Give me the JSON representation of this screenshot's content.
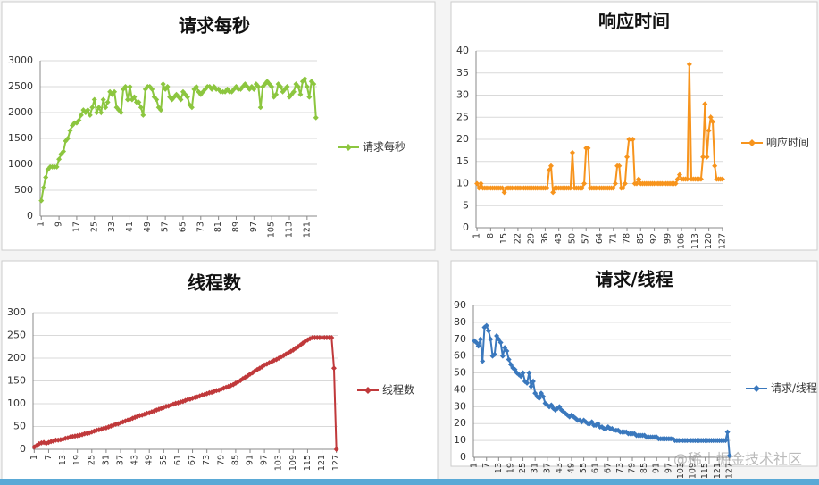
{
  "chart_data": [
    {
      "type": "line",
      "title": "请求每秒",
      "categories": [
        1,
        null,
        null,
        null,
        null,
        null,
        null,
        null,
        9,
        null,
        null,
        null,
        null,
        null,
        null,
        null,
        17,
        null,
        null,
        null,
        null,
        null,
        null,
        null,
        25,
        null,
        null,
        null,
        null,
        null,
        null,
        null,
        33,
        null,
        null,
        null,
        null,
        null,
        null,
        null,
        41,
        null,
        null,
        null,
        null,
        null,
        null,
        null,
        49,
        null,
        null,
        null,
        null,
        null,
        null,
        null,
        57,
        null,
        null,
        null,
        null,
        null,
        null,
        null,
        65,
        null,
        null,
        null,
        null,
        null,
        null,
        null,
        73,
        null,
        null,
        null,
        null,
        null,
        null,
        null,
        81,
        null,
        null,
        null,
        null,
        null,
        null,
        null,
        89,
        null,
        null,
        null,
        null,
        null,
        null,
        null,
        97,
        null,
        null,
        null,
        null,
        null,
        null,
        null,
        105,
        null,
        null,
        null,
        null,
        null,
        null,
        null,
        113,
        null,
        null,
        null,
        null,
        null,
        null,
        null,
        121,
        null,
        null,
        null,
        null
      ],
      "series": [
        {
          "name": "请求每秒",
          "color": "#8cc63f",
          "values": [
            300,
            550,
            750,
            900,
            950,
            950,
            950,
            950,
            1100,
            1200,
            1250,
            1450,
            1500,
            1650,
            1750,
            1800,
            1800,
            1850,
            1950,
            2050,
            2000,
            2050,
            1950,
            2100,
            2250,
            2000,
            2100,
            2000,
            2250,
            2100,
            2200,
            2400,
            2350,
            2400,
            2100,
            2050,
            2000,
            2450,
            2500,
            2250,
            2500,
            2250,
            2300,
            2200,
            2200,
            2100,
            1950,
            2450,
            2500,
            2500,
            2450,
            2300,
            2250,
            2100,
            2050,
            2550,
            2450,
            2500,
            2300,
            2250,
            2300,
            2350,
            2300,
            2250,
            2400,
            2350,
            2300,
            2150,
            2100,
            2450,
            2500,
            2400,
            2350,
            2400,
            2450,
            2500,
            2500,
            2450,
            2500,
            2450,
            2450,
            2400,
            2400,
            2400,
            2450,
            2400,
            2400,
            2450,
            2500,
            2450,
            2450,
            2500,
            2550,
            2500,
            2450,
            2500,
            2450,
            2550,
            2500,
            2100,
            2500,
            2550,
            2600,
            2550,
            2500,
            2300,
            2350,
            2550,
            2500,
            2400,
            2450,
            2500,
            2300,
            2350,
            2400,
            2550,
            2500,
            2350,
            2600,
            2650,
            2500,
            2300,
            2600,
            2550,
            1900
          ]
        }
      ],
      "ylim": [
        0,
        3000
      ],
      "yticks": [
        0,
        500,
        1000,
        1500,
        2000,
        2500,
        3000
      ],
      "grid": true
    },
    {
      "type": "line",
      "title": "响应时间",
      "categories": [
        1,
        null,
        null,
        null,
        null,
        null,
        null,
        8,
        null,
        null,
        null,
        null,
        null,
        null,
        15,
        null,
        null,
        null,
        null,
        null,
        null,
        22,
        null,
        null,
        null,
        null,
        null,
        null,
        29,
        null,
        null,
        null,
        null,
        null,
        null,
        36,
        null,
        null,
        null,
        null,
        null,
        null,
        43,
        null,
        null,
        null,
        null,
        null,
        null,
        50,
        null,
        null,
        null,
        null,
        null,
        null,
        57,
        null,
        null,
        null,
        null,
        null,
        null,
        64,
        null,
        null,
        null,
        null,
        null,
        null,
        71,
        null,
        null,
        null,
        null,
        null,
        null,
        78,
        null,
        null,
        null,
        null,
        null,
        null,
        85,
        null,
        null,
        null,
        null,
        null,
        null,
        92,
        null,
        null,
        null,
        null,
        null,
        null,
        99,
        null,
        null,
        null,
        null,
        null,
        null,
        106,
        null,
        null,
        null,
        null,
        null,
        null,
        113,
        null,
        null,
        null,
        null,
        null,
        null,
        120,
        null,
        null,
        null,
        null,
        null,
        null,
        127
      ],
      "series": [
        {
          "name": "响应时间",
          "color": "#f7941d",
          "values": [
            10,
            9,
            10,
            9,
            9,
            9,
            9,
            9,
            9,
            9,
            9,
            9,
            9,
            9,
            8,
            9,
            9,
            9,
            9,
            9,
            9,
            9,
            9,
            9,
            9,
            9,
            9,
            9,
            9,
            9,
            9,
            9,
            9,
            9,
            9,
            9,
            9,
            13,
            14,
            8,
            9,
            9,
            9,
            9,
            9,
            9,
            9,
            9,
            9,
            17,
            9,
            9,
            9,
            9,
            9,
            10,
            18,
            18,
            9,
            9,
            9,
            9,
            9,
            9,
            9,
            9,
            9,
            9,
            9,
            9,
            9,
            10,
            14,
            14,
            9,
            9,
            10,
            16,
            20,
            20,
            20,
            10,
            10,
            11,
            10,
            10,
            10,
            10,
            10,
            10,
            10,
            10,
            10,
            10,
            10,
            10,
            10,
            10,
            10,
            10,
            10,
            10,
            10,
            11,
            12,
            11,
            11,
            11,
            11,
            37,
            11,
            11,
            11,
            11,
            11,
            11,
            16,
            28,
            16,
            22,
            25,
            24,
            14,
            11,
            11,
            11,
            11
          ]
        }
      ],
      "ylim": [
        0,
        40
      ],
      "yticks": [
        0,
        5,
        10,
        15,
        20,
        25,
        30,
        35,
        40
      ],
      "grid": true
    },
    {
      "type": "line",
      "title": "线程数",
      "categories": [
        1,
        null,
        null,
        null,
        null,
        null,
        7,
        null,
        null,
        null,
        null,
        null,
        13,
        null,
        null,
        null,
        null,
        null,
        19,
        null,
        null,
        null,
        null,
        null,
        25,
        null,
        null,
        null,
        null,
        null,
        31,
        null,
        null,
        null,
        null,
        null,
        37,
        null,
        null,
        null,
        null,
        null,
        43,
        null,
        null,
        null,
        null,
        null,
        49,
        null,
        null,
        null,
        null,
        null,
        55,
        null,
        null,
        null,
        null,
        null,
        61,
        null,
        null,
        null,
        null,
        null,
        67,
        null,
        null,
        null,
        null,
        null,
        73,
        null,
        null,
        null,
        null,
        null,
        79,
        null,
        null,
        null,
        null,
        null,
        85,
        null,
        null,
        null,
        null,
        null,
        91,
        null,
        null,
        null,
        null,
        null,
        97,
        null,
        null,
        null,
        null,
        null,
        103,
        null,
        null,
        null,
        null,
        null,
        109,
        null,
        null,
        null,
        null,
        null,
        115,
        null,
        null,
        null,
        null,
        null,
        121,
        null,
        null,
        null,
        null,
        null,
        127
      ],
      "series": [
        {
          "name": "线程数",
          "color": "#c0393b",
          "values": [
            5,
            8,
            12,
            14,
            15,
            13,
            15,
            17,
            18,
            20,
            20,
            21,
            22,
            24,
            25,
            27,
            28,
            29,
            30,
            31,
            32,
            34,
            35,
            36,
            38,
            40,
            42,
            43,
            44,
            46,
            47,
            49,
            51,
            53,
            55,
            56,
            58,
            60,
            62,
            64,
            66,
            68,
            70,
            72,
            74,
            75,
            77,
            79,
            80,
            82,
            84,
            86,
            88,
            90,
            92,
            94,
            95,
            97,
            99,
            101,
            102,
            104,
            105,
            107,
            109,
            110,
            112,
            114,
            115,
            117,
            119,
            120,
            122,
            124,
            125,
            127,
            129,
            130,
            132,
            134,
            136,
            138,
            140,
            142,
            145,
            148,
            151,
            155,
            158,
            161,
            165,
            168,
            172,
            175,
            178,
            181,
            185,
            187,
            190,
            192,
            195,
            197,
            200,
            203,
            206,
            209,
            212,
            215,
            218,
            222,
            225,
            229,
            233,
            237,
            240,
            243,
            245,
            245,
            245,
            245,
            245,
            245,
            245,
            245,
            245,
            178,
            0
          ]
        }
      ],
      "ylim": [
        0,
        300
      ],
      "yticks": [
        0,
        50,
        100,
        150,
        200,
        250,
        300
      ],
      "grid": true
    },
    {
      "type": "line",
      "title": "请求/线程",
      "categories": [
        1,
        null,
        null,
        null,
        null,
        null,
        7,
        null,
        null,
        null,
        null,
        null,
        13,
        null,
        null,
        null,
        null,
        null,
        19,
        null,
        null,
        null,
        null,
        null,
        25,
        null,
        null,
        null,
        null,
        null,
        31,
        null,
        null,
        null,
        null,
        null,
        37,
        null,
        null,
        null,
        null,
        null,
        43,
        null,
        null,
        null,
        null,
        null,
        49,
        null,
        null,
        null,
        null,
        null,
        55,
        null,
        null,
        null,
        null,
        null,
        61,
        null,
        null,
        null,
        null,
        null,
        67,
        null,
        null,
        null,
        null,
        null,
        73,
        null,
        null,
        null,
        null,
        null,
        79,
        null,
        null,
        null,
        null,
        null,
        85,
        null,
        null,
        null,
        null,
        null,
        91,
        null,
        null,
        null,
        null,
        null,
        97,
        null,
        null,
        null,
        null,
        null,
        103,
        null,
        null,
        null,
        null,
        null,
        109,
        null,
        null,
        null,
        null,
        null,
        115,
        null,
        null,
        null,
        null,
        null,
        121,
        null,
        null,
        null,
        null,
        null,
        127
      ],
      "series": [
        {
          "name": "请求/线程",
          "color": "#3a78bd",
          "values": [
            69,
            68,
            66,
            70,
            57,
            77,
            78,
            75,
            70,
            60,
            61,
            72,
            70,
            68,
            60,
            65,
            63,
            58,
            55,
            53,
            52,
            50,
            49,
            48,
            50,
            45,
            44,
            50,
            42,
            45,
            38,
            36,
            35,
            38,
            36,
            32,
            31,
            30,
            31,
            29,
            28,
            29,
            30,
            28,
            27,
            26,
            25,
            24,
            25,
            24,
            23,
            22,
            22,
            21,
            22,
            21,
            20,
            20,
            21,
            19,
            19,
            20,
            18,
            18,
            17,
            17,
            18,
            17,
            17,
            16,
            16,
            16,
            15,
            15,
            15,
            15,
            14,
            14,
            14,
            14,
            13,
            13,
            13,
            13,
            13,
            12,
            12,
            12,
            12,
            12,
            12,
            11,
            11,
            11,
            11,
            11,
            11,
            11,
            11,
            10,
            10,
            10,
            10,
            10,
            10,
            10,
            10,
            10,
            10,
            10,
            10,
            10,
            10,
            10,
            10,
            10,
            10,
            10,
            10,
            10,
            10,
            10,
            10,
            10,
            10,
            15,
            1
          ]
        }
      ],
      "ylim": [
        0,
        90
      ],
      "yticks": [
        0,
        10,
        20,
        30,
        40,
        50,
        60,
        70,
        80,
        90
      ],
      "grid": true
    }
  ],
  "watermark": "@稀土掘金技术社区"
}
